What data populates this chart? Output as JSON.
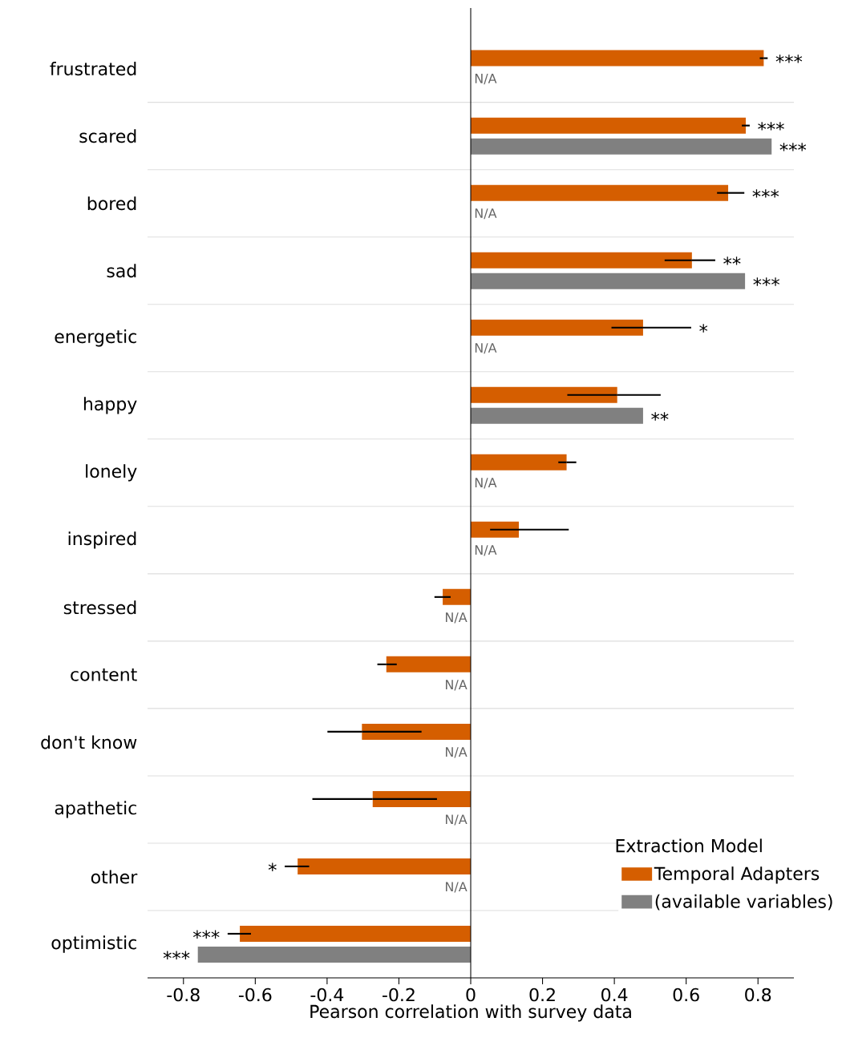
{
  "chart_data": {
    "type": "bar",
    "orientation": "horizontal",
    "xlabel": "Pearson correlation with survey data",
    "legend_title": "Extraction Model",
    "legend": "bottom right",
    "grid": "y",
    "categories": [
      "frustrated",
      "scared",
      "bored",
      "sad",
      "energetic",
      "happy",
      "lonely",
      "inspired",
      "stressed",
      "content",
      "don't know",
      "apathetic",
      "other",
      "optimistic"
    ],
    "xlim": [
      -0.9,
      0.9
    ],
    "xticks": [
      -0.8,
      -0.6,
      -0.4,
      -0.2,
      0,
      0.2,
      0.4,
      0.6,
      0.8
    ],
    "series": [
      {
        "name": "Temporal Adapters",
        "color": "#d55e00",
        "values": [
          0.816,
          0.766,
          0.717,
          0.616,
          0.48,
          0.408,
          0.267,
          0.134,
          -0.078,
          -0.235,
          -0.303,
          -0.273,
          -0.482,
          -0.643
        ],
        "errors": [
          [
            0.805,
            0.827
          ],
          [
            0.755,
            0.777
          ],
          [
            0.686,
            0.762
          ],
          [
            0.54,
            0.681
          ],
          [
            0.392,
            0.614
          ],
          [
            0.269,
            0.529
          ],
          [
            0.244,
            0.294
          ],
          [
            0.054,
            0.273
          ],
          [
            -0.101,
            -0.056
          ],
          [
            -0.26,
            -0.206
          ],
          [
            -0.399,
            -0.137
          ],
          [
            -0.441,
            -0.094
          ],
          [
            -0.518,
            -0.45
          ],
          [
            -0.677,
            -0.612
          ]
        ]
      },
      {
        "name": "(available variables)",
        "color": "#808080",
        "values": [
          null,
          0.838,
          null,
          0.764,
          null,
          0.48,
          null,
          null,
          null,
          null,
          null,
          null,
          null,
          -0.76
        ],
        "value_labels": [
          "N/A",
          null,
          "N/A",
          null,
          "N/A",
          null,
          "N/A",
          "N/A",
          "N/A",
          "N/A",
          "N/A",
          "N/A",
          "N/A",
          null
        ]
      }
    ],
    "annotations": [
      {
        "text": "***",
        "x": 0.816,
        "y": "frustrated"
      },
      {
        "text": "***",
        "x": 0.766,
        "y": "scared"
      },
      {
        "text": "***",
        "x": 0.838,
        "y": "scared"
      },
      {
        "text": "***",
        "x": 0.717,
        "y": "bored"
      },
      {
        "text": "**",
        "x": 0.616,
        "y": "sad"
      },
      {
        "text": "***",
        "x": 0.764,
        "y": "sad"
      },
      "*",
      {
        "text": "**",
        "x": 0.48,
        "y": "happy"
      },
      {
        "text": "*",
        "x": -0.482,
        "y": "other"
      },
      {
        "text": "***",
        "x": -0.643,
        "y": "optimistic"
      },
      {
        "text": "***",
        "x": -0.76,
        "y": "optimistic"
      }
    ]
  }
}
